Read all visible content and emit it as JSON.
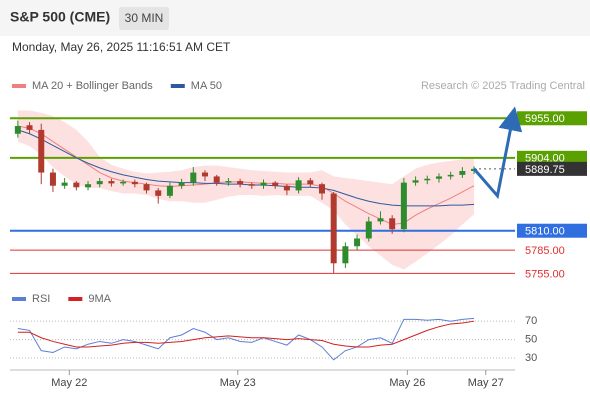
{
  "header": {
    "title": "S&P 500 (CME)",
    "interval": "30 MIN",
    "datetime": "Monday, May 26, 2025 11:16:51 AM CET"
  },
  "chart_data": [
    {
      "type": "candlestick",
      "credit": "Research © 2025 Trading Central",
      "x": [
        0,
        1,
        2,
        3,
        4,
        5,
        6,
        7,
        8,
        9,
        10,
        11,
        12,
        13,
        14,
        15,
        16,
        17,
        18,
        19,
        20,
        21,
        22,
        23,
        24,
        25,
        26,
        27,
        28,
        29,
        30,
        31,
        32,
        33,
        34,
        35,
        36,
        37,
        38,
        39
      ],
      "open": [
        5935,
        5946,
        5940,
        5885,
        5868,
        5872,
        5866,
        5870,
        5874,
        5871,
        5873,
        5870,
        5862,
        5855,
        5868,
        5872,
        5885,
        5880,
        5872,
        5874,
        5870,
        5868,
        5872,
        5868,
        5862,
        5875,
        5870,
        5858,
        5768,
        5790,
        5800,
        5822,
        5826,
        5812,
        5872,
        5875,
        5877,
        5880,
        5882,
        5887
      ],
      "high": [
        5952,
        5950,
        5948,
        5890,
        5878,
        5874,
        5874,
        5878,
        5877,
        5876,
        5876,
        5872,
        5865,
        5872,
        5877,
        5892,
        5888,
        5882,
        5878,
        5877,
        5872,
        5876,
        5874,
        5870,
        5879,
        5878,
        5872,
        5860,
        5795,
        5805,
        5828,
        5835,
        5830,
        5878,
        5880,
        5881,
        5884,
        5886,
        5892,
        5893
      ],
      "low": [
        5930,
        5935,
        5870,
        5860,
        5864,
        5862,
        5862,
        5866,
        5867,
        5868,
        5866,
        5858,
        5845,
        5852,
        5864,
        5868,
        5874,
        5868,
        5868,
        5866,
        5864,
        5864,
        5864,
        5856,
        5858,
        5866,
        5850,
        5755,
        5762,
        5785,
        5796,
        5818,
        5806,
        5808,
        5868,
        5870,
        5872,
        5876,
        5878,
        5883
      ],
      "close": [
        5945,
        5940,
        5885,
        5868,
        5872,
        5866,
        5870,
        5874,
        5871,
        5873,
        5870,
        5862,
        5855,
        5868,
        5872,
        5885,
        5880,
        5872,
        5874,
        5870,
        5868,
        5872,
        5868,
        5862,
        5875,
        5870,
        5858,
        5768,
        5790,
        5800,
        5822,
        5826,
        5812,
        5872,
        5875,
        5877,
        5880,
        5882,
        5887,
        5889.75
      ],
      "up_color": "#2e8b2e",
      "down_color": "#b03a2e",
      "series": [
        {
          "name": "MA 20 + Bollinger Bands",
          "color": "#f08080",
          "values": [
            5945,
            5942,
            5935,
            5925,
            5915,
            5905,
            5895,
            5885,
            5878,
            5874,
            5872,
            5870,
            5868,
            5867,
            5868,
            5869,
            5870,
            5872,
            5873,
            5873,
            5872,
            5871,
            5871,
            5870,
            5870,
            5870,
            5867,
            5858,
            5848,
            5840,
            5832,
            5825,
            5818,
            5820,
            5830,
            5838,
            5845,
            5852,
            5860,
            5868
          ]
        },
        {
          "name": "MA 50",
          "color": "#2d5a9e",
          "values": [
            5940,
            5935,
            5928,
            5920,
            5912,
            5904,
            5897,
            5891,
            5886,
            5882,
            5879,
            5876,
            5874,
            5873,
            5872,
            5872,
            5871,
            5871,
            5870,
            5870,
            5869,
            5869,
            5868,
            5867,
            5866,
            5866,
            5865,
            5862,
            5857,
            5852,
            5848,
            5845,
            5843,
            5842,
            5842,
            5842,
            5842,
            5843,
            5843,
            5844
          ]
        }
      ],
      "bands": {
        "color": "#fde0e0",
        "upper": [
          5965,
          5965,
          5962,
          5958,
          5950,
          5940,
          5925,
          5905,
          5895,
          5890,
          5886,
          5884,
          5885,
          5886,
          5888,
          5892,
          5894,
          5894,
          5892,
          5890,
          5888,
          5887,
          5886,
          5885,
          5885,
          5885,
          5888,
          5880,
          5878,
          5876,
          5874,
          5872,
          5870,
          5880,
          5890,
          5895,
          5898,
          5900,
          5902,
          5905
        ],
        "lower": [
          5925,
          5919,
          5908,
          5892,
          5880,
          5870,
          5865,
          5865,
          5861,
          5858,
          5858,
          5856,
          5851,
          5848,
          5848,
          5846,
          5846,
          5850,
          5854,
          5856,
          5856,
          5855,
          5856,
          5855,
          5855,
          5855,
          5846,
          5836,
          5818,
          5804,
          5790,
          5778,
          5766,
          5760,
          5770,
          5781,
          5792,
          5804,
          5818,
          5831
        ]
      },
      "levels": [
        {
          "value": 5955,
          "label": "5955.00",
          "color": "#5aa000",
          "label_style": "box"
        },
        {
          "value": 5904,
          "label": "5904.00",
          "color": "#5aa000",
          "label_style": "box"
        },
        {
          "value": 5810,
          "label": "5810.00",
          "color": "#2f6fe0",
          "label_style": "box"
        },
        {
          "value": 5785,
          "label": "5785.00",
          "color": "#e03030",
          "label_style": "plain"
        },
        {
          "value": 5755,
          "label": "5755.00",
          "color": "#e03030",
          "label_style": "plain"
        }
      ],
      "last": {
        "value": 5889.75,
        "color": "#333333"
      },
      "forecast": {
        "x": [
          39,
          41,
          42.3
        ],
        "values": [
          5889.75,
          5855,
          5955
        ],
        "color": "#2d6bb5"
      },
      "xlim": [
        -0.5,
        42.5
      ],
      "ylim": [
        5740,
        5985
      ]
    },
    {
      "type": "line",
      "x": [
        0,
        1,
        2,
        3,
        4,
        5,
        6,
        7,
        8,
        9,
        10,
        11,
        12,
        13,
        14,
        15,
        16,
        17,
        18,
        19,
        20,
        21,
        22,
        23,
        24,
        25,
        26,
        27,
        28,
        29,
        30,
        31,
        32,
        33,
        34,
        35,
        36,
        37,
        38,
        39
      ],
      "series": [
        {
          "name": "RSI",
          "color": "#5b7fd6",
          "values": [
            62,
            60,
            38,
            36,
            42,
            40,
            45,
            48,
            46,
            50,
            48,
            44,
            40,
            52,
            55,
            62,
            58,
            50,
            52,
            48,
            47,
            52,
            48,
            44,
            55,
            50,
            42,
            28,
            38,
            42,
            50,
            52,
            46,
            72,
            72,
            71,
            72,
            70,
            72,
            73
          ]
        },
        {
          "name": "9MA",
          "color": "#d42020",
          "values": [
            58,
            58,
            52,
            48,
            45,
            42,
            42,
            43,
            44,
            46,
            47,
            47,
            46,
            47,
            48,
            50,
            52,
            53,
            54,
            53,
            52,
            52,
            51,
            50,
            51,
            50,
            49,
            45,
            43,
            42,
            42,
            44,
            45,
            50,
            55,
            60,
            64,
            67,
            68,
            70
          ]
        }
      ],
      "xlim": [
        -0.5,
        42.5
      ],
      "ylim": [
        17,
        93
      ],
      "yticks": [
        70,
        50,
        30
      ],
      "xticks": [
        {
          "value": 4.4,
          "label": "May 22"
        },
        {
          "value": 18.8,
          "label": "May 23"
        },
        {
          "value": 33.3,
          "label": "May 26"
        },
        {
          "value": 40,
          "label": "May 27"
        }
      ]
    }
  ]
}
